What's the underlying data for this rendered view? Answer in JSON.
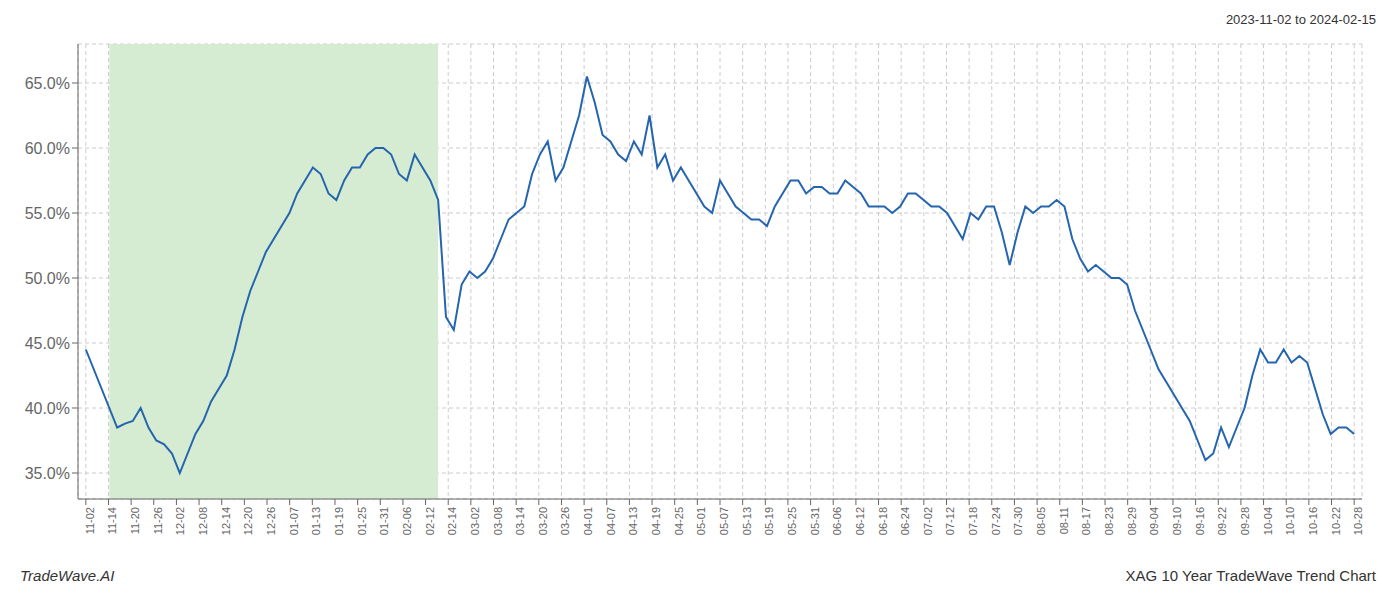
{
  "chart_data": {
    "type": "line",
    "annotations": [
      "2023-11-02 to 2024-02-15",
      "TradeWave.AI",
      "XAG 10 Year TradeWave Trend Chart"
    ],
    "x": [
      0,
      1,
      2,
      3,
      4,
      5,
      6,
      7,
      8,
      9,
      10,
      11,
      12,
      13,
      14,
      15,
      16,
      17,
      18,
      19,
      20,
      21,
      22,
      23,
      24,
      25,
      26,
      27,
      28,
      29,
      30,
      31,
      32,
      33,
      34,
      35,
      36,
      37,
      38,
      39,
      40,
      41,
      42,
      43,
      44,
      45,
      46,
      47,
      48,
      49,
      50,
      51,
      52,
      53,
      54,
      55,
      56,
      57,
      58,
      59,
      60,
      61,
      62,
      63,
      64,
      65,
      66,
      67,
      68,
      69,
      70,
      71,
      72,
      73,
      74,
      75,
      76,
      77,
      78,
      79,
      80,
      81,
      82,
      83,
      84,
      85,
      86,
      87,
      88,
      89,
      90,
      91,
      92,
      93,
      94,
      95,
      96,
      97,
      98,
      99,
      100,
      101,
      102,
      103,
      104,
      105,
      106,
      107,
      108,
      109,
      110,
      111,
      112,
      113,
      114,
      115,
      116,
      117,
      118,
      119,
      120,
      121,
      122,
      123,
      124,
      125,
      126,
      127,
      128,
      129,
      130,
      131,
      132,
      133,
      134,
      135,
      136,
      137,
      138,
      139,
      140,
      141,
      142,
      143,
      144,
      145,
      146,
      147,
      148,
      149,
      150,
      151,
      152,
      153,
      154,
      155,
      156,
      157,
      158,
      159,
      160,
      161,
      162
    ],
    "values": [
      44.5,
      43.0,
      41.5,
      40.0,
      38.5,
      38.8,
      39.0,
      40.0,
      38.5,
      37.5,
      37.2,
      36.5,
      35.0,
      36.5,
      38.0,
      39.0,
      40.5,
      41.5,
      42.5,
      44.5,
      47.0,
      49.0,
      50.5,
      52.0,
      53.0,
      54.0,
      55.0,
      56.5,
      57.5,
      58.5,
      58.0,
      56.5,
      56.0,
      57.5,
      58.5,
      58.5,
      59.5,
      60.0,
      60.0,
      59.5,
      58.0,
      57.5,
      59.5,
      58.5,
      57.5,
      56.0,
      47.0,
      46.0,
      49.5,
      50.5,
      50.0,
      50.5,
      51.5,
      53.0,
      54.5,
      55.0,
      55.5,
      58.0,
      59.5,
      60.5,
      57.5,
      58.5,
      60.5,
      62.5,
      65.5,
      63.5,
      61.0,
      60.5,
      59.5,
      59.0,
      60.5,
      59.5,
      62.5,
      58.5,
      59.5,
      57.5,
      58.5,
      57.5,
      56.5,
      55.5,
      55.0,
      57.5,
      56.5,
      55.5,
      55.0,
      54.5,
      54.5,
      54.0,
      55.5,
      56.5,
      57.5,
      57.5,
      56.5,
      57.0,
      57.0,
      56.5,
      56.5,
      57.5,
      57.0,
      56.5,
      55.5,
      55.5,
      55.5,
      55.0,
      55.5,
      56.5,
      56.5,
      56.0,
      55.5,
      55.5,
      55.0,
      54.0,
      53.0,
      55.0,
      54.5,
      55.5,
      55.5,
      53.5,
      51.0,
      53.5,
      55.5,
      55.0,
      55.5,
      55.5,
      56.0,
      55.5,
      53.0,
      51.5,
      50.5,
      51.0,
      50.5,
      50.0,
      50.0,
      49.5,
      47.5,
      46.0,
      44.5,
      43.0,
      42.0,
      41.0,
      40.0,
      39.0,
      37.5,
      36.0,
      36.5,
      38.5,
      37.0,
      38.5,
      40.0,
      42.5,
      44.5,
      43.5,
      43.5,
      44.5,
      43.5,
      44.0,
      43.5,
      41.5,
      39.5,
      38.0,
      38.5,
      38.5,
      38.0
    ],
    "color": "#2565AE",
    "highlight": {
      "x": [
        3,
        45
      ],
      "color": "#d6ecd2"
    },
    "xlim": [
      -1,
      163
    ],
    "xticks": [
      {
        "value": 0,
        "label": "11-02"
      },
      {
        "value": 2.892857,
        "label": "11-14"
      },
      {
        "value": 5.785714,
        "label": "11-20"
      },
      {
        "value": 8.678571,
        "label": "11-26"
      },
      {
        "value": 11.571429,
        "label": "12-02"
      },
      {
        "value": 14.464286,
        "label": "12-08"
      },
      {
        "value": 17.357143,
        "label": "12-14"
      },
      {
        "value": 20.25,
        "label": "12-20"
      },
      {
        "value": 23.142857,
        "label": "12-26"
      },
      {
        "value": 26.035714,
        "label": "01-07"
      },
      {
        "value": 28.928571,
        "label": "01-13"
      },
      {
        "value": 31.821429,
        "label": "01-19"
      },
      {
        "value": 34.714286,
        "label": "01-25"
      },
      {
        "value": 37.607143,
        "label": "01-31"
      },
      {
        "value": 40.5,
        "label": "02-06"
      },
      {
        "value": 43.392857,
        "label": "02-12"
      },
      {
        "value": 46.285714,
        "label": "02-14"
      },
      {
        "value": 49.178571,
        "label": "03-02"
      },
      {
        "value": 52.071429,
        "label": "03-08"
      },
      {
        "value": 54.964286,
        "label": "03-14"
      },
      {
        "value": 57.857143,
        "label": "03-20"
      },
      {
        "value": 60.75,
        "label": "03-26"
      },
      {
        "value": 63.642857,
        "label": "04-01"
      },
      {
        "value": 66.535714,
        "label": "04-07"
      },
      {
        "value": 69.428571,
        "label": "04-13"
      },
      {
        "value": 72.321429,
        "label": "04-19"
      },
      {
        "value": 75.214286,
        "label": "04-25"
      },
      {
        "value": 78.107143,
        "label": "05-01"
      },
      {
        "value": 81,
        "label": "05-07"
      },
      {
        "value": 83.892857,
        "label": "05-13"
      },
      {
        "value": 86.785714,
        "label": "05-19"
      },
      {
        "value": 89.678571,
        "label": "05-25"
      },
      {
        "value": 92.571429,
        "label": "05-31"
      },
      {
        "value": 95.464286,
        "label": "06-06"
      },
      {
        "value": 98.357143,
        "label": "06-12"
      },
      {
        "value": 101.25,
        "label": "06-18"
      },
      {
        "value": 104.142857,
        "label": "06-24"
      },
      {
        "value": 107.035714,
        "label": "07-02"
      },
      {
        "value": 109.928571,
        "label": "07-12"
      },
      {
        "value": 112.821429,
        "label": "07-18"
      },
      {
        "value": 115.714286,
        "label": "07-24"
      },
      {
        "value": 118.607143,
        "label": "07-30"
      },
      {
        "value": 121.5,
        "label": "08-05"
      },
      {
        "value": 124.392857,
        "label": "08-11"
      },
      {
        "value": 127.285714,
        "label": "08-17"
      },
      {
        "value": 130.178571,
        "label": "08-23"
      },
      {
        "value": 133.071429,
        "label": "08-29"
      },
      {
        "value": 135.964286,
        "label": "09-04"
      },
      {
        "value": 138.857143,
        "label": "09-10"
      },
      {
        "value": 141.75,
        "label": "09-16"
      },
      {
        "value": 144.642857,
        "label": "09-22"
      },
      {
        "value": 147.535714,
        "label": "09-28"
      },
      {
        "value": 150.428571,
        "label": "10-04"
      },
      {
        "value": 153.321429,
        "label": "10-10"
      },
      {
        "value": 156.214286,
        "label": "10-16"
      },
      {
        "value": 159.107143,
        "label": "10-22"
      },
      {
        "value": 162,
        "label": "10-28"
      }
    ],
    "ylim": [
      33.0,
      68.0
    ],
    "yticks": [
      {
        "value": 35.0,
        "label": "35.0%"
      },
      {
        "value": 40.0,
        "label": "40.0%"
      },
      {
        "value": 45.0,
        "label": "45.0%"
      },
      {
        "value": 50.0,
        "label": "50.0%"
      },
      {
        "value": 55.0,
        "label": "55.0%"
      },
      {
        "value": 60.0,
        "label": "60.0%"
      },
      {
        "value": 65.0,
        "label": "65.0%"
      }
    ],
    "grid": true
  }
}
